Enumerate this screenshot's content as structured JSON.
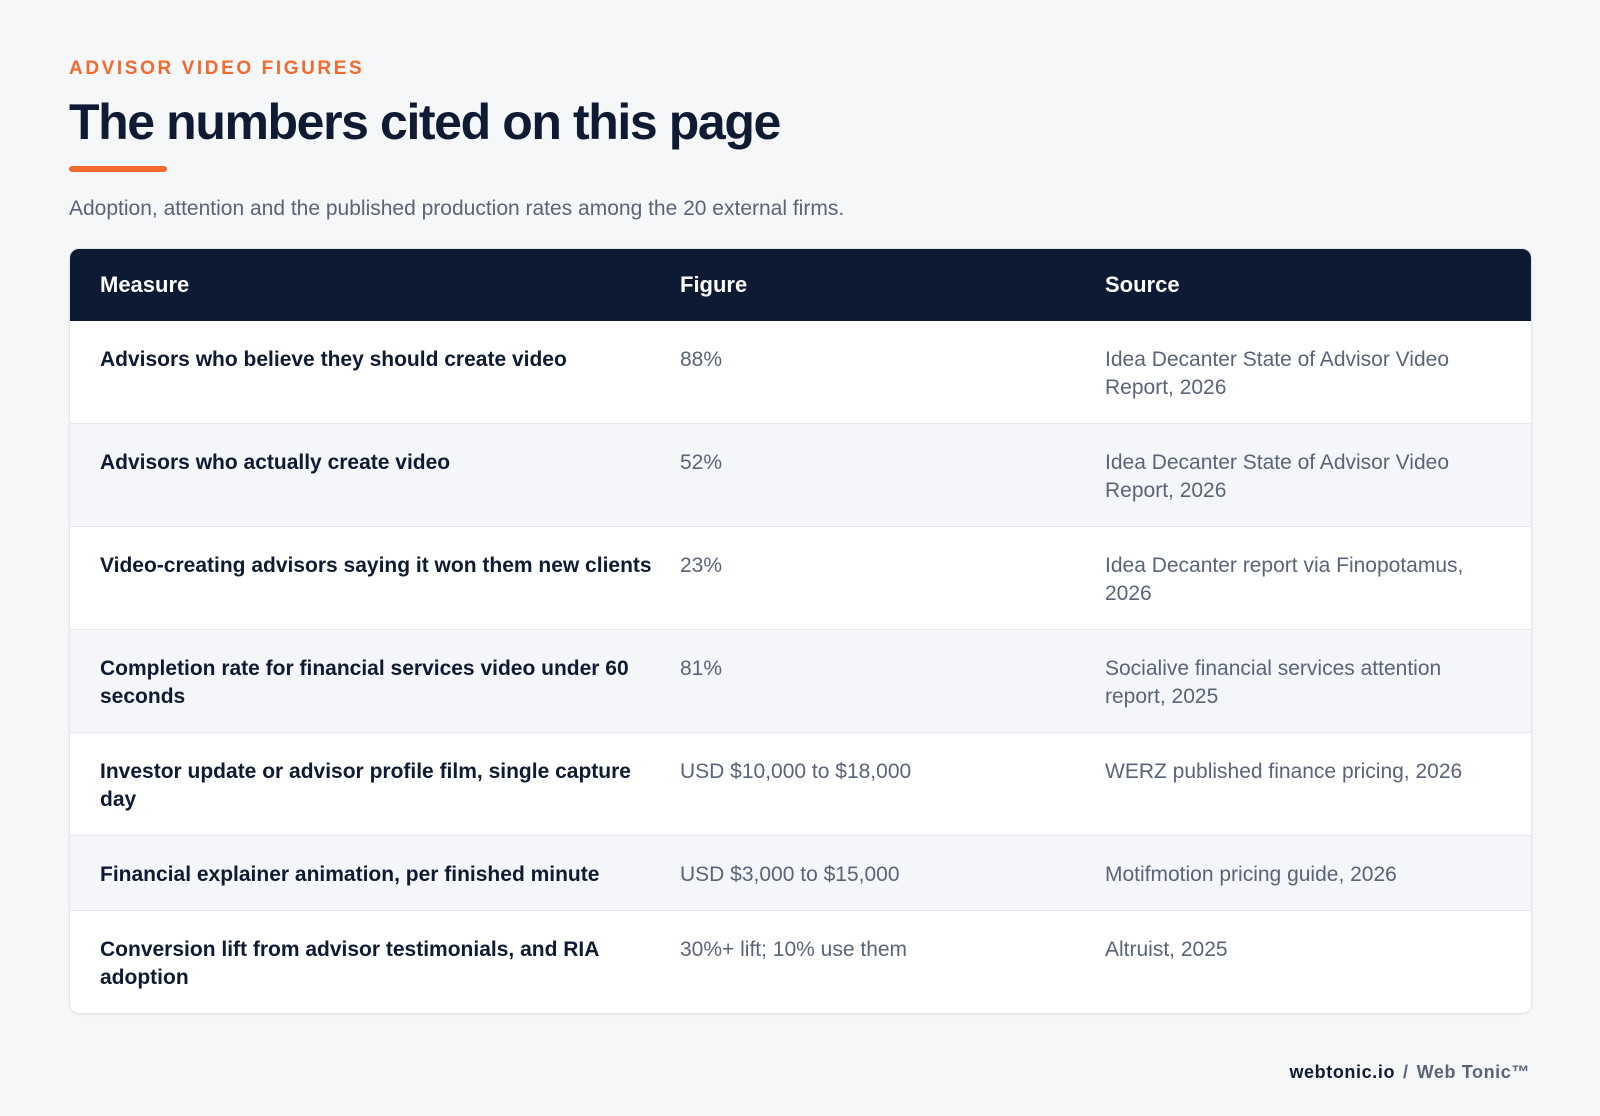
{
  "header": {
    "eyebrow": "ADVISOR VIDEO FIGURES",
    "title": "The numbers cited on this page",
    "subtitle": "Adoption, attention and the published production rates among the 20 external firms."
  },
  "colors": {
    "accent": "#f26a2e",
    "header_bg": "#0c1a33",
    "text_dark": "#0f1b33",
    "text_muted": "#5a6478",
    "row_alt": "#f4f6f9"
  },
  "table": {
    "columns": [
      "Measure",
      "Figure",
      "Source"
    ],
    "rows": [
      {
        "measure": "Advisors who believe they should create video",
        "figure": "88%",
        "source": "Idea Decanter State of Advisor Video Report, 2026"
      },
      {
        "measure": "Advisors who actually create video",
        "figure": "52%",
        "source": "Idea Decanter State of Advisor Video Report, 2026"
      },
      {
        "measure": "Video-creating advisors saying it won them new clients",
        "figure": "23%",
        "source": "Idea Decanter report via Finopotamus, 2026"
      },
      {
        "measure": "Completion rate for financial services video under 60 seconds",
        "figure": "81%",
        "source": "Socialive financial services attention report, 2025"
      },
      {
        "measure": "Investor update or advisor profile film, single capture day",
        "figure": "USD $10,000 to $18,000",
        "source": "WERZ published finance pricing, 2026"
      },
      {
        "measure": "Financial explainer animation, per finished minute",
        "figure": "USD $3,000 to $15,000",
        "source": "Motifmotion pricing guide, 2026"
      },
      {
        "measure": "Conversion lift from advisor testimonials, and RIA adoption",
        "figure": "30%+ lift; 10% use them",
        "source": "Altruist, 2025"
      }
    ]
  },
  "footer": {
    "site": "webtonic.io",
    "separator": "/",
    "brand": "Web Tonic™"
  }
}
